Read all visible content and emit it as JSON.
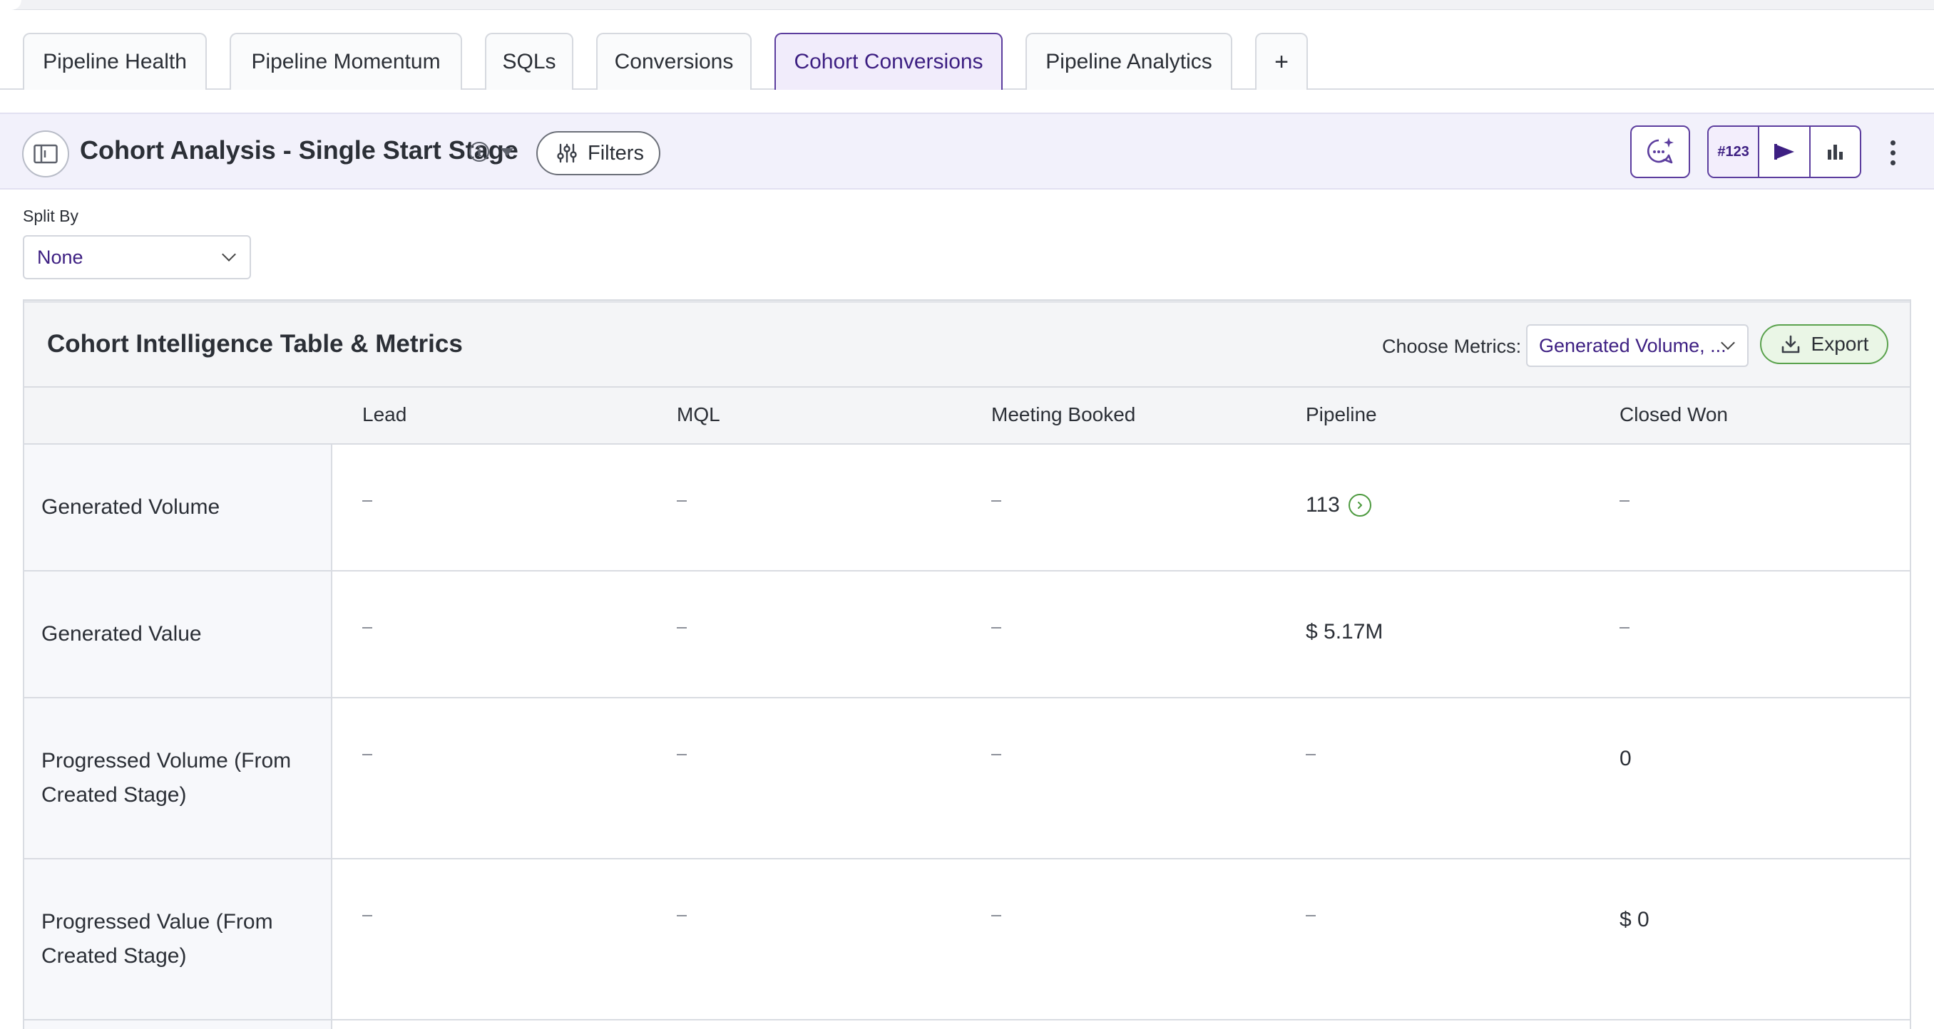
{
  "tabs": [
    {
      "label": "Pipeline Health",
      "active": false
    },
    {
      "label": "Pipeline Momentum",
      "active": false
    },
    {
      "label": "SQLs",
      "active": false
    },
    {
      "label": "Conversions",
      "active": false
    },
    {
      "label": "Cohort Conversions",
      "active": true
    },
    {
      "label": "Pipeline Analytics",
      "active": false
    },
    {
      "label": "+",
      "active": false
    }
  ],
  "header": {
    "title": "Cohort Analysis - Single Start Stage",
    "filters_label": "Filters",
    "number_format_label": "#123",
    "icons": [
      "sidebar-toggle-icon",
      "info-icon",
      "caret-down-icon",
      "sliders-icon",
      "ai-chat-sparkle-icon",
      "flag-icon",
      "bar-chart-icon",
      "more-vertical-icon"
    ]
  },
  "split_by": {
    "label": "Split By",
    "value": "None"
  },
  "card": {
    "title": "Cohort Intelligence Table & Metrics",
    "metrics_label": "Choose Metrics:",
    "metrics_value": "Generated Volume, ...",
    "export_label": "Export"
  },
  "table": {
    "columns": [
      "Lead",
      "MQL",
      "Meeting Booked",
      "Pipeline",
      "Closed Won"
    ],
    "rows": [
      {
        "label": "Generated Volume",
        "cells": [
          "–",
          "–",
          "–",
          "113",
          "–"
        ],
        "drill_col": 3
      },
      {
        "label": "Generated Value",
        "cells": [
          "–",
          "–",
          "–",
          "$ 5.17M",
          "–"
        ]
      },
      {
        "label": "Progressed Volume (From Created Stage)",
        "cells": [
          "–",
          "–",
          "–",
          "–",
          "0"
        ]
      },
      {
        "label": "Progressed Value (From Created Stage)",
        "cells": [
          "–",
          "–",
          "–",
          "–",
          "$ 0"
        ]
      }
    ]
  },
  "colors": {
    "accent": "#5c3d9e",
    "accent_text": "#3d1f82",
    "header_band": "#f2f1fb",
    "export_green": "#5aa24d"
  }
}
